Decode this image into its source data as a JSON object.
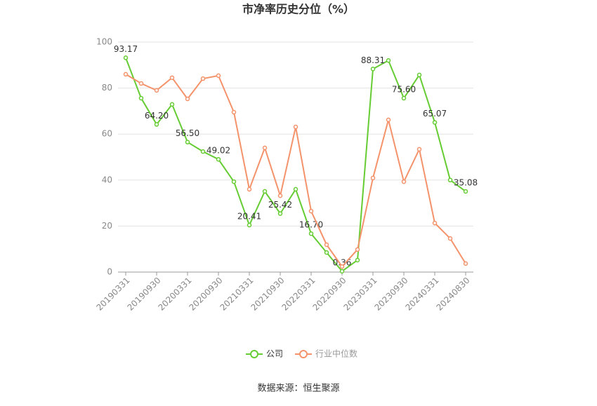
{
  "chart_data": {
    "type": "line",
    "title": "市净率历史分位（%）",
    "categories": [
      "20190331",
      null,
      "20190930",
      null,
      "20200331",
      null,
      "20200930",
      null,
      "20210331",
      null,
      "20210930",
      null,
      "20220331",
      null,
      "20220930",
      null,
      "20230331",
      null,
      "20230930",
      null,
      "20240331",
      null,
      "20240830"
    ],
    "series": [
      {
        "name": "公司",
        "color": "#66cc33",
        "values": [
          93.17,
          75.6,
          64.2,
          72.9,
          56.5,
          52.4,
          49.02,
          39.3,
          20.41,
          35.1,
          25.42,
          36,
          16.7,
          8.5,
          0.36,
          5.2,
          88.31,
          92,
          75.6,
          85.7,
          65.07,
          40,
          35.08
        ],
        "value_labels": [
          "93.17",
          null,
          "64.20",
          null,
          "56.50",
          null,
          "49.02",
          null,
          "20.41",
          null,
          "25.42",
          null,
          "16.70",
          null,
          "0.36",
          null,
          "88.31",
          null,
          "75.60",
          null,
          "65.07",
          null,
          "35.08"
        ]
      },
      {
        "name": "行业中位数",
        "color": "#f4936b",
        "values": [
          86,
          82,
          79,
          84.5,
          75.3,
          84.1,
          85.4,
          69.5,
          36,
          54,
          33.2,
          63.1,
          26.5,
          11.9,
          2.4,
          9.8,
          40.9,
          66.2,
          39.3,
          53.4,
          21.3,
          14.6,
          3.7
        ]
      }
    ],
    "ylim": [
      0,
      100
    ],
    "yticks": [
      0,
      20,
      40,
      60,
      80,
      100
    ],
    "grid": true,
    "legend": "bottom",
    "source": "数据来源：恒生聚源"
  }
}
